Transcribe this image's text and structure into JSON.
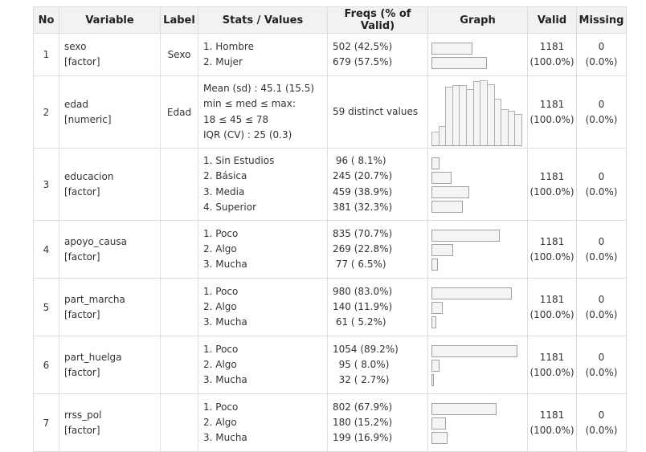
{
  "headers": {
    "no": "No",
    "variable": "Variable",
    "label": "Label",
    "stats": "Stats / Values",
    "freqs": "Freqs (% of Valid)",
    "graph": "Graph",
    "valid": "Valid",
    "missing": "Missing"
  },
  "rows": [
    {
      "no": "1",
      "name": "sexo",
      "type": "[factor]",
      "label": "Sexo",
      "stats": [
        "1. Hombre",
        "2. Mujer"
      ],
      "freqs": [
        "502 (42.5%)",
        "679 (57.5%)"
      ],
      "bar_pct": [
        42.5,
        57.5
      ],
      "valid_n": "1181",
      "valid_pct": "(100.0%)",
      "missing_n": "0",
      "missing_pct": "(0.0%)"
    },
    {
      "no": "2",
      "name": "edad",
      "type": "[numeric]",
      "label": "Edad",
      "stats": [
        "Mean (sd) : 45.1 (15.5)",
        "min ≤ med ≤ max:",
        "18 ≤ 45 ≤ 78",
        "IQR (CV) : 25 (0.3)"
      ],
      "freqs": [
        "59 distinct values"
      ],
      "histogram": [
        0.22,
        0.3,
        0.88,
        0.9,
        0.9,
        0.85,
        0.97,
        0.98,
        0.92,
        0.7,
        0.55,
        0.52,
        0.48
      ],
      "valid_n": "1181",
      "valid_pct": "(100.0%)",
      "missing_n": "0",
      "missing_pct": "(0.0%)"
    },
    {
      "no": "3",
      "name": "educacion",
      "type": "[factor]",
      "label": "",
      "stats": [
        "1. Sin Estudios",
        "2. Básica",
        "3. Media",
        "4. Superior"
      ],
      "freqs": [
        " 96 ( 8.1%)",
        "245 (20.7%)",
        "459 (38.9%)",
        "381 (32.3%)"
      ],
      "bar_pct": [
        8.1,
        20.7,
        38.9,
        32.3
      ],
      "valid_n": "1181",
      "valid_pct": "(100.0%)",
      "missing_n": "0",
      "missing_pct": "(0.0%)"
    },
    {
      "no": "4",
      "name": "apoyo_causa",
      "type": "[factor]",
      "label": "",
      "stats": [
        "1. Poco",
        "2. Algo",
        "3. Mucha"
      ],
      "freqs": [
        "835 (70.7%)",
        "269 (22.8%)",
        " 77 ( 6.5%)"
      ],
      "bar_pct": [
        70.7,
        22.8,
        6.5
      ],
      "valid_n": "1181",
      "valid_pct": "(100.0%)",
      "missing_n": "0",
      "missing_pct": "(0.0%)"
    },
    {
      "no": "5",
      "name": "part_marcha",
      "type": "[factor]",
      "label": "",
      "stats": [
        "1. Poco",
        "2. Algo",
        "3. Mucha"
      ],
      "freqs": [
        "980 (83.0%)",
        "140 (11.9%)",
        " 61 ( 5.2%)"
      ],
      "bar_pct": [
        83.0,
        11.9,
        5.2
      ],
      "valid_n": "1181",
      "valid_pct": "(100.0%)",
      "missing_n": "0",
      "missing_pct": "(0.0%)"
    },
    {
      "no": "6",
      "name": "part_huelga",
      "type": "[factor]",
      "label": "",
      "stats": [
        "1. Poco",
        "2. Algo",
        "3. Mucha"
      ],
      "freqs": [
        "1054 (89.2%)",
        "  95 ( 8.0%)",
        "  32 ( 2.7%)"
      ],
      "bar_pct": [
        89.2,
        8.0,
        2.7
      ],
      "valid_n": "1181",
      "valid_pct": "(100.0%)",
      "missing_n": "0",
      "missing_pct": "(0.0%)"
    },
    {
      "no": "7",
      "name": "rrss_pol",
      "type": "[factor]",
      "label": "",
      "stats": [
        "1. Poco",
        "2. Algo",
        "3. Mucha"
      ],
      "freqs": [
        "802 (67.9%)",
        "180 (15.2%)",
        "199 (16.9%)"
      ],
      "bar_pct": [
        67.9,
        15.2,
        16.9
      ],
      "valid_n": "1181",
      "valid_pct": "(100.0%)",
      "missing_n": "0",
      "missing_pct": "(0.0%)"
    }
  ]
}
